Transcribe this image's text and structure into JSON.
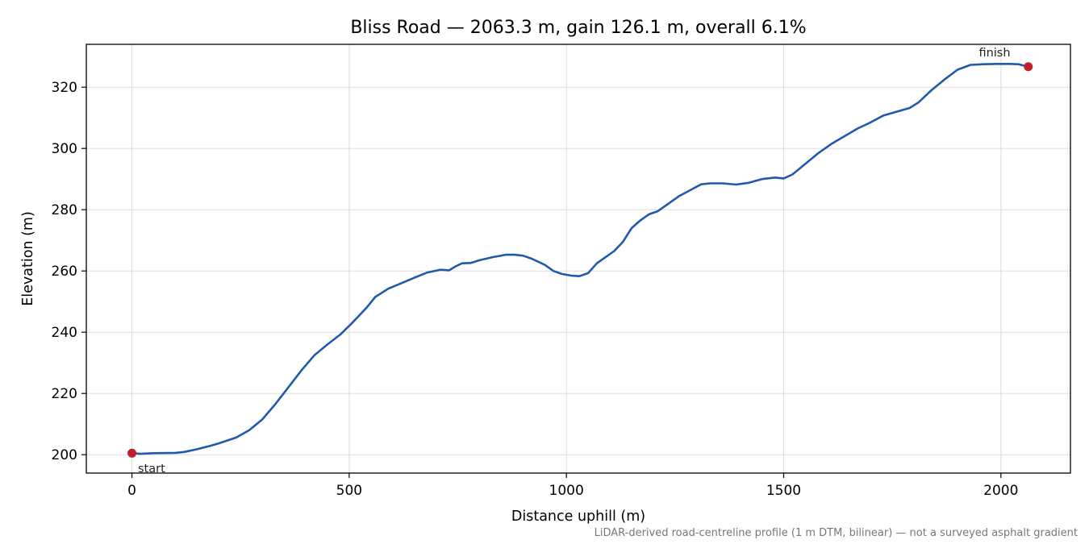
{
  "chart_data": {
    "type": "line",
    "title": "Bliss Road — 2063.3 m, gain 126.1 m, overall 6.1%",
    "xlabel": "Distance uphill (m)",
    "ylabel": "Elevation (m)",
    "xlim": [
      -105,
      2160
    ],
    "ylim": [
      194,
      334
    ],
    "xticks": [
      0,
      500,
      1000,
      1500,
      2000
    ],
    "yticks": [
      200,
      220,
      240,
      260,
      280,
      300,
      320
    ],
    "grid": true,
    "line_color": "#1f5aab",
    "marker_color": "#c0202e",
    "series": [
      {
        "x": [
          0,
          20,
          50,
          100,
          120,
          150,
          180,
          200,
          240,
          270,
          300,
          330,
          360,
          390,
          420,
          450,
          480,
          510,
          540,
          560,
          590,
          620,
          650,
          680,
          710,
          730,
          745,
          760,
          780,
          800,
          830,
          860,
          880,
          900,
          920,
          950,
          970,
          990,
          1010,
          1030,
          1050,
          1070,
          1090,
          1110,
          1130,
          1150,
          1170,
          1190,
          1210,
          1240,
          1260,
          1280,
          1310,
          1330,
          1360,
          1390,
          1420,
          1450,
          1480,
          1500,
          1520,
          1550,
          1580,
          1610,
          1640,
          1670,
          1700,
          1730,
          1760,
          1790,
          1810,
          1840,
          1870,
          1900,
          1930,
          1960,
          1990,
          2020,
          2040,
          2063
        ],
        "y": [
          200.5,
          200.3,
          200.5,
          200.6,
          200.9,
          201.8,
          202.9,
          203.7,
          205.6,
          208.0,
          211.5,
          216.5,
          222.0,
          227.5,
          232.5,
          236.0,
          239.3,
          243.5,
          248.0,
          251.5,
          254.2,
          256.0,
          257.8,
          259.5,
          260.4,
          260.2,
          261.5,
          262.5,
          262.6,
          263.5,
          264.5,
          265.3,
          265.3,
          265.0,
          264.0,
          262.0,
          260.0,
          259.0,
          258.5,
          258.3,
          259.3,
          262.5,
          264.5,
          266.5,
          269.5,
          274.0,
          276.5,
          278.5,
          279.5,
          282.5,
          284.5,
          286.0,
          288.3,
          288.6,
          288.6,
          288.2,
          288.8,
          290.0,
          290.5,
          290.2,
          291.5,
          295.0,
          298.5,
          301.5,
          304.0,
          306.5,
          308.5,
          310.8,
          312.0,
          313.2,
          315.0,
          319.0,
          322.5,
          325.7,
          327.3,
          327.5,
          327.6,
          327.6,
          327.5,
          326.7
        ]
      }
    ],
    "start_label": "start",
    "finish_label": "finish",
    "start_point": [
      0,
      200.5
    ],
    "finish_point": [
      2063,
      326.7
    ],
    "footnote": "LiDAR-derived road-centreline profile (1 m DTM, bilinear) — not a surveyed asphalt gradient"
  }
}
